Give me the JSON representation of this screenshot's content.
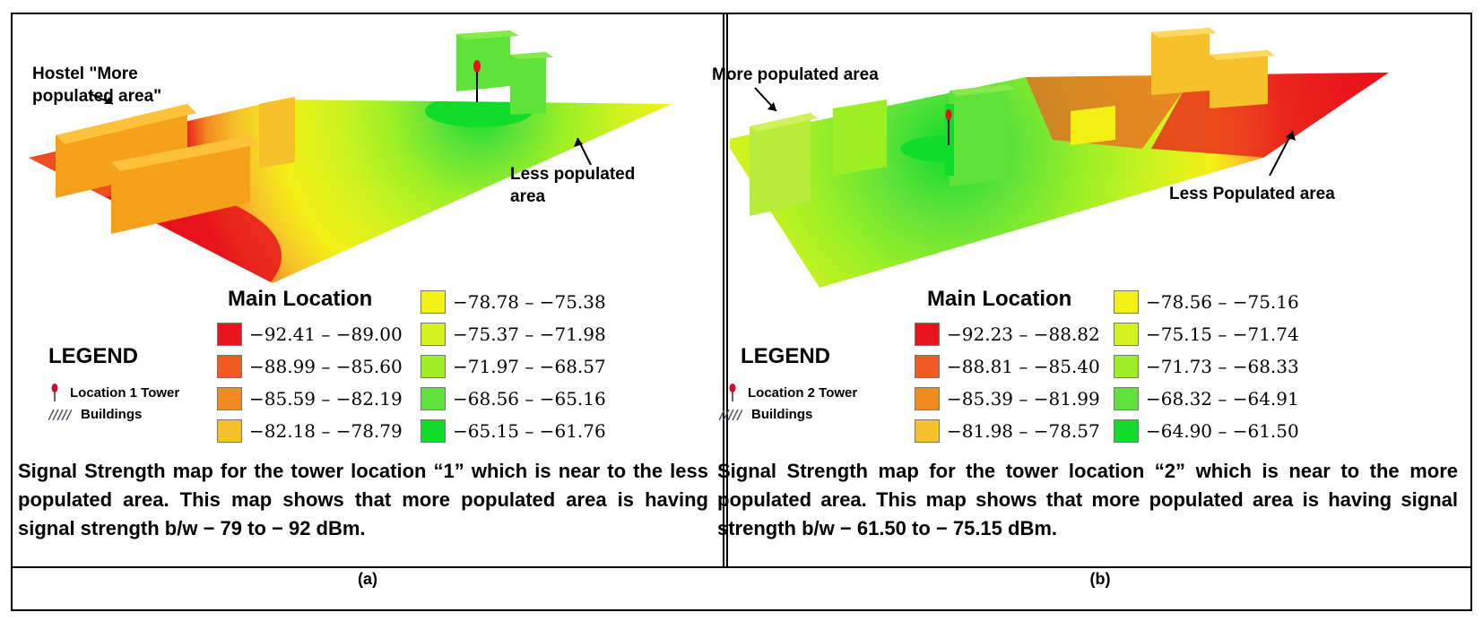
{
  "panels": [
    {
      "id": "a",
      "annotations": [
        "Hostel \"More populated area\"",
        "Less populated area"
      ],
      "main_location_title": "Main Location",
      "legend_ranges": [
        {
          "label": "−92.41 – −89.00",
          "color": "#e8141b"
        },
        {
          "label": "−88.99 – −85.60",
          "color": "#ef5b22"
        },
        {
          "label": "−85.59 – −82.19",
          "color": "#f38c1f"
        },
        {
          "label": "−82.18 – −78.79",
          "color": "#f7c12c"
        },
        {
          "label": "−78.78 – −75.38",
          "color": "#f4f016"
        },
        {
          "label": "−75.37 – −71.98",
          "color": "#d4f21f"
        },
        {
          "label": "−71.97 – −68.57",
          "color": "#9ef025"
        },
        {
          "label": "−68.56 – −65.16",
          "color": "#5fe23a"
        },
        {
          "label": "−65.15 – −61.76",
          "color": "#0fdd29"
        }
      ],
      "legend_title": "LEGEND",
      "tower_label": "Location 1 Tower",
      "buildings_label": "Buildings",
      "caption": "Signal Strength map for the tower location “1” which is near to the less populated area. This map shows that more populated area is having signal strength b/w − 79 to − 92 dBm.",
      "sublabel": "(a)"
    },
    {
      "id": "b",
      "annotations": [
        "More populated area",
        "Less Populated area"
      ],
      "main_location_title": "Main Location",
      "legend_ranges": [
        {
          "label": "−92.23 – −88.82",
          "color": "#e8141b"
        },
        {
          "label": "−88.81 – −85.40",
          "color": "#ef5b22"
        },
        {
          "label": "−85.39 – −81.99",
          "color": "#f38c1f"
        },
        {
          "label": "−81.98 – −78.57",
          "color": "#f7c12c"
        },
        {
          "label": "−78.56 – −75.16",
          "color": "#f4f016"
        },
        {
          "label": "−75.15 – −71.74",
          "color": "#d4f21f"
        },
        {
          "label": "−71.73 – −68.33",
          "color": "#9ef025"
        },
        {
          "label": "−68.32 – −64.91",
          "color": "#5fe23a"
        },
        {
          "label": "−64.90 – −61.50",
          "color": "#0fdd29"
        }
      ],
      "legend_title": "LEGEND",
      "tower_label": "Location 2 Tower",
      "buildings_label": "Buildings",
      "caption": "Signal Strength map for the tower location “2” which is near to the more populated area. This map shows that more populated area is having signal strength b/w − 61.50 to − 75.15 dBm.",
      "sublabel": "(b)"
    }
  ]
}
